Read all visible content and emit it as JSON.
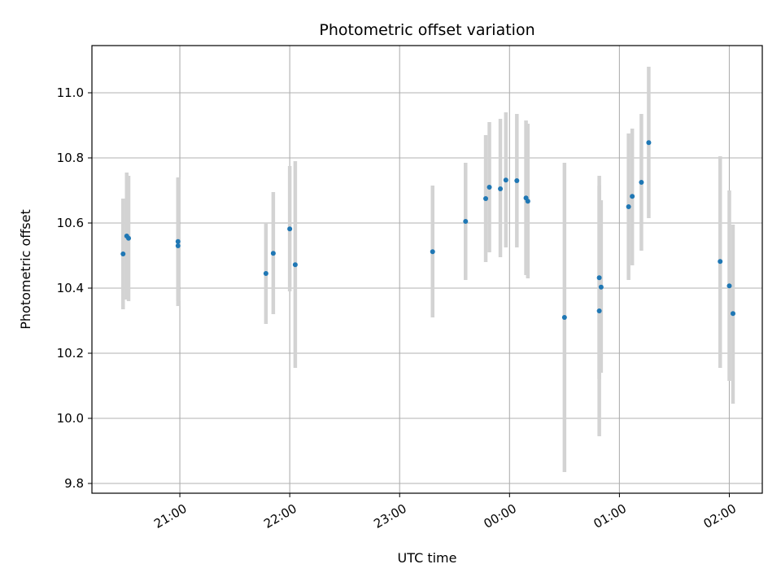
{
  "chart_data": {
    "type": "scatter",
    "title": "Photometric offset variation",
    "xlabel": "UTC time",
    "ylabel": "Photometric offset",
    "grid": true,
    "marker_color": "#1f77b4",
    "errorbar_color": "#d3d3d3",
    "xlim": [
      "20:12",
      "02:18"
    ],
    "ylim": [
      9.77,
      11.145
    ],
    "xticks": [
      "21:00",
      "22:00",
      "23:00",
      "00:00",
      "01:00",
      "02:00"
    ],
    "yticks": [
      "9.8",
      "10.0",
      "10.2",
      "10.4",
      "10.6",
      "10.8",
      "11.0"
    ],
    "points": [
      {
        "time": "20:29",
        "value": 10.505,
        "low": 10.335,
        "high": 10.675
      },
      {
        "time": "20:31",
        "value": 10.56,
        "low": 10.365,
        "high": 10.755
      },
      {
        "time": "20:32",
        "value": 10.553,
        "low": 10.36,
        "high": 10.745
      },
      {
        "time": "20:59",
        "value": 10.53,
        "low": 10.345,
        "high": 10.735
      },
      {
        "time": "20:59",
        "value": 10.543,
        "low": 10.36,
        "high": 10.74
      },
      {
        "time": "21:47",
        "value": 10.445,
        "low": 10.29,
        "high": 10.6
      },
      {
        "time": "21:51",
        "value": 10.507,
        "low": 10.32,
        "high": 10.695
      },
      {
        "time": "22:00",
        "value": 10.582,
        "low": 10.39,
        "high": 10.775
      },
      {
        "time": "22:03",
        "value": 10.472,
        "low": 10.155,
        "high": 10.79
      },
      {
        "time": "23:18",
        "value": 10.512,
        "low": 10.31,
        "high": 10.715
      },
      {
        "time": "23:36",
        "value": 10.605,
        "low": 10.425,
        "high": 10.785
      },
      {
        "time": "23:47",
        "value": 10.675,
        "low": 10.48,
        "high": 10.87
      },
      {
        "time": "23:49",
        "value": 10.71,
        "low": 10.51,
        "high": 10.91
      },
      {
        "time": "23:55",
        "value": 10.705,
        "low": 10.495,
        "high": 10.92
      },
      {
        "time": "23:58",
        "value": 10.732,
        "low": 10.525,
        "high": 10.94
      },
      {
        "time": "00:04",
        "value": 10.73,
        "low": 10.525,
        "high": 10.935
      },
      {
        "time": "00:09",
        "value": 10.677,
        "low": 10.44,
        "high": 10.915
      },
      {
        "time": "00:10",
        "value": 10.667,
        "low": 10.43,
        "high": 10.905
      },
      {
        "time": "00:30",
        "value": 10.31,
        "low": 9.835,
        "high": 10.785
      },
      {
        "time": "00:49",
        "value": 10.432,
        "low": 10.12,
        "high": 10.745
      },
      {
        "time": "00:49",
        "value": 10.33,
        "low": 9.945,
        "high": 10.715
      },
      {
        "time": "00:50",
        "value": 10.403,
        "low": 10.14,
        "high": 10.67
      },
      {
        "time": "01:05",
        "value": 10.65,
        "low": 10.425,
        "high": 10.875
      },
      {
        "time": "01:07",
        "value": 10.682,
        "low": 10.47,
        "high": 10.89
      },
      {
        "time": "01:12",
        "value": 10.725,
        "low": 10.515,
        "high": 10.935
      },
      {
        "time": "01:16",
        "value": 10.847,
        "low": 10.615,
        "high": 11.08
      },
      {
        "time": "01:55",
        "value": 10.482,
        "low": 10.155,
        "high": 10.805
      },
      {
        "time": "02:00",
        "value": 10.407,
        "low": 10.115,
        "high": 10.7
      },
      {
        "time": "02:02",
        "value": 10.322,
        "low": 10.045,
        "high": 10.595
      }
    ]
  }
}
